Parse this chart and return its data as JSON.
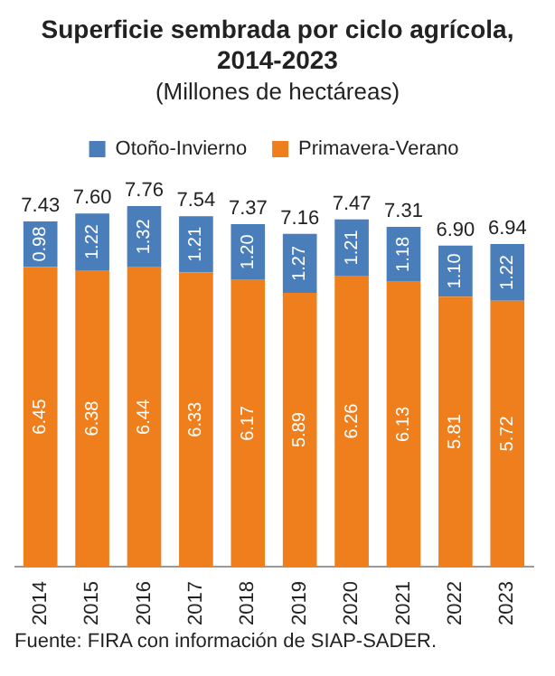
{
  "chart_data": {
    "type": "bar",
    "title": "Superficie sembrada por ciclo agrícola, 2014-2023",
    "subtitle": "(Millones de hectáreas)",
    "categories": [
      "2014",
      "2015",
      "2016",
      "2017",
      "2018",
      "2019",
      "2020",
      "2021",
      "2022",
      "2023"
    ],
    "series": [
      {
        "name": "Primavera-Verano",
        "color": "#ee7f1c",
        "values": [
          6.45,
          6.38,
          6.44,
          6.33,
          6.17,
          5.89,
          6.26,
          6.13,
          5.81,
          5.72
        ],
        "value_labels": [
          "6.45",
          "6.38",
          "6.44",
          "6.33",
          "6.17",
          "5.89",
          "6.26",
          "6.13",
          "5.81",
          "5.72"
        ]
      },
      {
        "name": "Otoño-Invierno",
        "color": "#4a7ebb",
        "values": [
          0.98,
          1.22,
          1.32,
          1.21,
          1.2,
          1.27,
          1.21,
          1.18,
          1.1,
          1.22
        ],
        "value_labels": [
          "0.98",
          "1.22",
          "1.32",
          "1.21",
          "1.20",
          "1.27",
          "1.21",
          "1.18",
          "1.10",
          "1.22"
        ]
      }
    ],
    "stacked": true,
    "totals": [
      "7.43",
      "7.60",
      "7.76",
      "7.54",
      "7.37",
      "7.16",
      "7.47",
      "7.31",
      "6.90",
      "6.94"
    ],
    "legend": "top",
    "grid": false,
    "annotations": [
      "Fuente: FIRA con información de SIAP-SADER."
    ]
  }
}
